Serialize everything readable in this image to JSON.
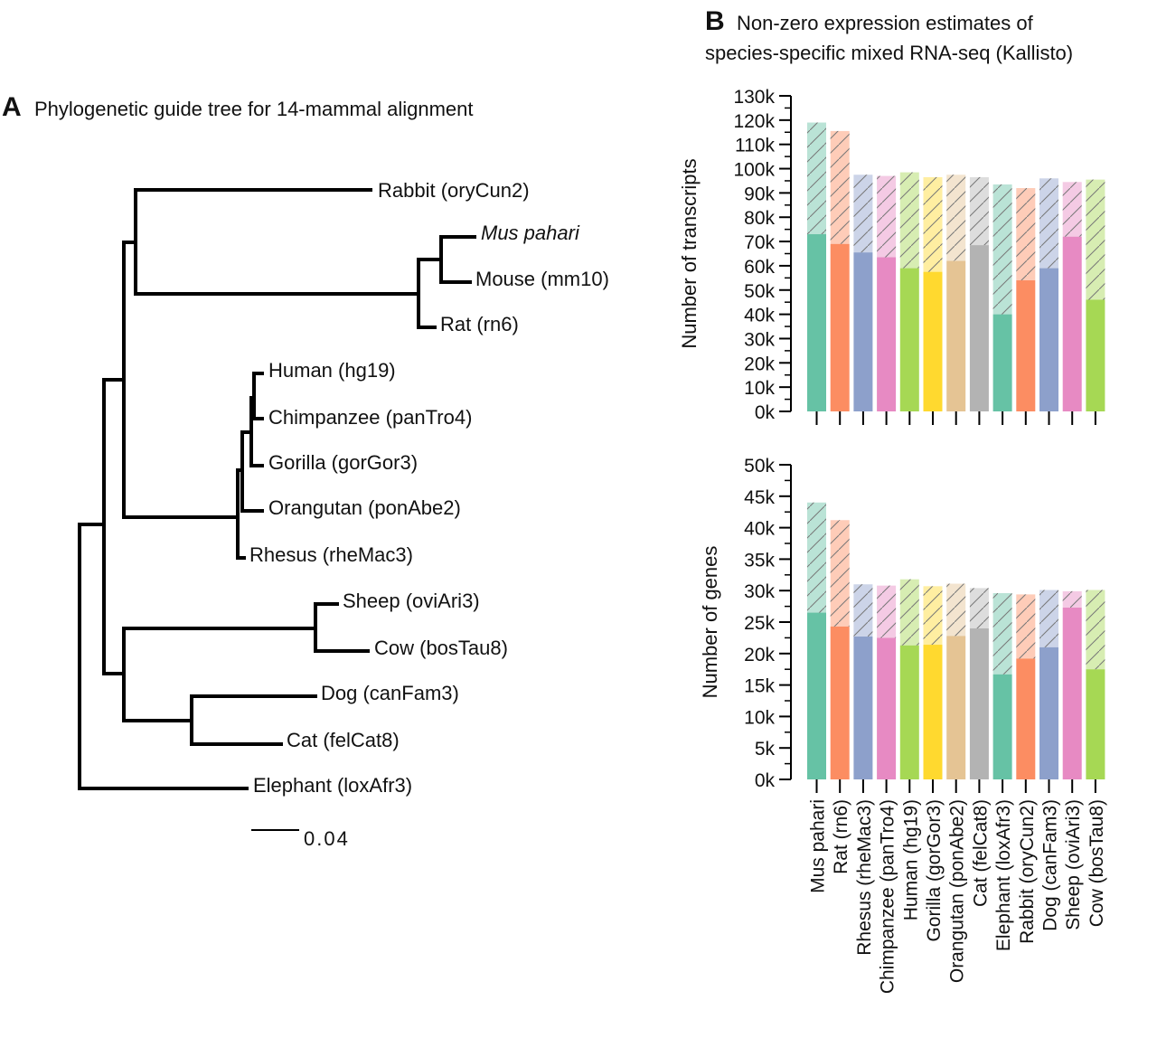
{
  "panel_a": {
    "label": "A",
    "title": "Phylogenetic guide tree for 14-mammal alignment",
    "leaves": [
      "Rabbit (oryCun2)",
      "Mus pahari",
      "Mouse (mm10)",
      "Rat (rn6)",
      "Human (hg19)",
      "Chimpanzee (panTro4)",
      "Gorilla (gorGor3)",
      "Orangutan (ponAbe2)",
      "Rhesus (rheMac3)",
      "Sheep (oviAri3)",
      "Cow (bosTau8)",
      "Dog (canFam3)",
      "Cat (felCat8)",
      "Elephant (loxAfr3)"
    ],
    "scale": "0.04"
  },
  "panel_b": {
    "label": "B",
    "title": [
      "Non-zero expression estimates of",
      "species-specific mixed RNA-seq (Kallisto)"
    ]
  },
  "chart_data": [
    {
      "type": "bar",
      "stacked": true,
      "ylabel": "Number of transcripts",
      "ylim": [
        0,
        130000
      ],
      "yticks": [
        {
          "value": 0,
          "label": "0k"
        },
        {
          "value": 10000,
          "label": "10k"
        },
        {
          "value": 20000,
          "label": "20k"
        },
        {
          "value": 30000,
          "label": "30k"
        },
        {
          "value": 40000,
          "label": "40k"
        },
        {
          "value": 50000,
          "label": "50k"
        },
        {
          "value": 60000,
          "label": "60k"
        },
        {
          "value": 70000,
          "label": "70k"
        },
        {
          "value": 80000,
          "label": "80k"
        },
        {
          "value": 90000,
          "label": "90k"
        },
        {
          "value": 100000,
          "label": "100k"
        },
        {
          "value": 110000,
          "label": "110k"
        },
        {
          "value": 120000,
          "label": "120k"
        },
        {
          "value": 130000,
          "label": "130k"
        }
      ],
      "colors": [
        "#66c2a5",
        "#fc8d62",
        "#8da0cb",
        "#e78ac3",
        "#a6d854",
        "#ffd92f",
        "#e5c494",
        "#b3b3b3",
        "#66c2a5",
        "#fc8d62",
        "#8da0cb",
        "#e78ac3",
        "#a6d854"
      ],
      "series": [
        {
          "values": [
            73000,
            69000,
            65500,
            63500,
            59000,
            57500,
            62000,
            68500,
            40000,
            54000,
            59000,
            72000,
            46000
          ]
        },
        {
          "values": [
            46000,
            46500,
            32000,
            33500,
            39500,
            39000,
            35500,
            28000,
            53500,
            38000,
            37000,
            22500,
            49500
          ],
          "hatched": true
        }
      ]
    },
    {
      "type": "bar",
      "stacked": true,
      "ylabel": "Number of genes",
      "ylim": [
        0,
        50000
      ],
      "yticks": [
        {
          "value": 0,
          "label": "0k"
        },
        {
          "value": 5000,
          "label": "5k"
        },
        {
          "value": 10000,
          "label": "10k"
        },
        {
          "value": 15000,
          "label": "15k"
        },
        {
          "value": 20000,
          "label": "20k"
        },
        {
          "value": 25000,
          "label": "25k"
        },
        {
          "value": 30000,
          "label": "30k"
        },
        {
          "value": 35000,
          "label": "35k"
        },
        {
          "value": 40000,
          "label": "40k"
        },
        {
          "value": 45000,
          "label": "45k"
        },
        {
          "value": 50000,
          "label": "50k"
        }
      ],
      "categories": [
        "Mus pahari",
        "Rat (rn6)",
        "Rhesus (rheMac3)",
        "Chimpanzee (panTro4)",
        "Human (hg19)",
        "Gorilla (gorGor3)",
        "Orangutan (ponAbe2)",
        "Cat (felCat8)",
        "Elephant (loxAfr3)",
        "Rabbit (oryCun2)",
        "Dog (canFam3)",
        "Sheep (oviAri3)",
        "Cow (bosTau8)"
      ],
      "colors": [
        "#66c2a5",
        "#fc8d62",
        "#8da0cb",
        "#e78ac3",
        "#a6d854",
        "#ffd92f",
        "#e5c494",
        "#b3b3b3",
        "#66c2a5",
        "#fc8d62",
        "#8da0cb",
        "#e78ac3",
        "#a6d854"
      ],
      "series": [
        {
          "values": [
            26500,
            24300,
            22700,
            22500,
            21300,
            21400,
            22800,
            24000,
            16700,
            19200,
            21000,
            27300,
            17500
          ]
        },
        {
          "values": [
            17500,
            16900,
            8300,
            8300,
            10500,
            9300,
            8300,
            6400,
            12900,
            10200,
            9100,
            2600,
            12600
          ],
          "hatched": true
        }
      ]
    }
  ]
}
